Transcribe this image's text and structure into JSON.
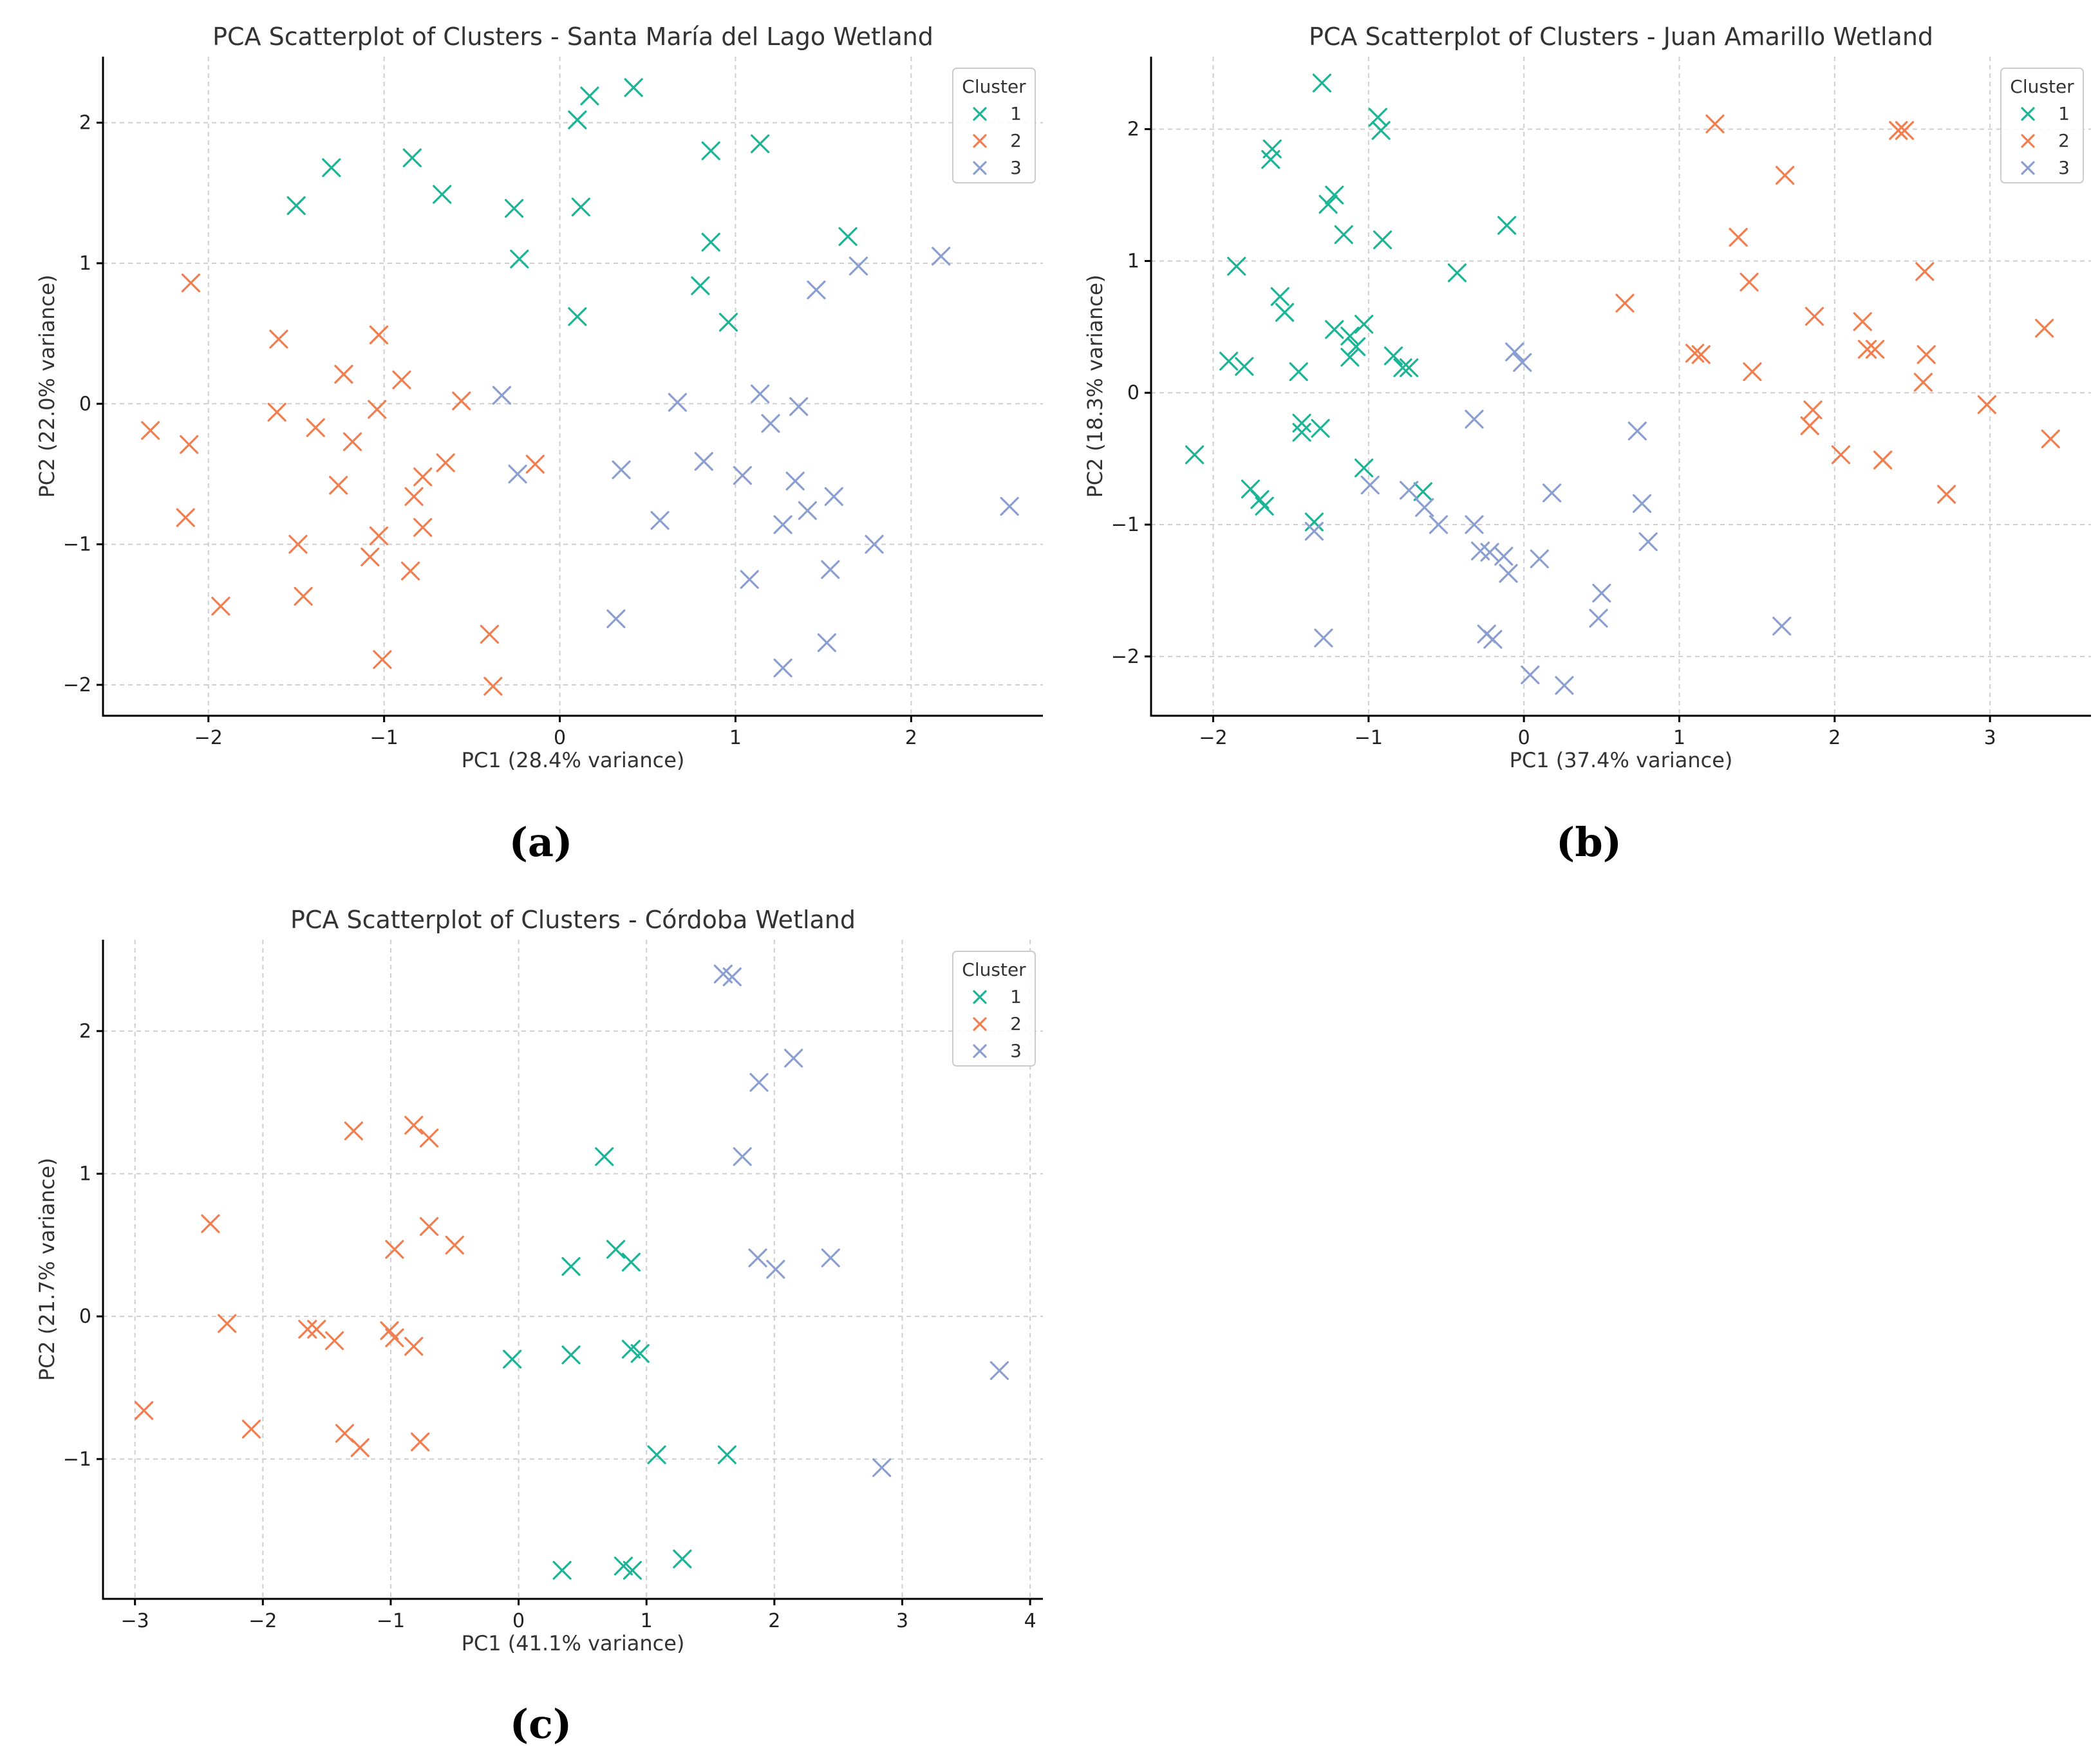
{
  "colors": {
    "cluster_1": "#1bb596",
    "cluster_2": "#f27d4e",
    "cluster_3": "#8a9fd0"
  },
  "chart_data": [
    {
      "type": "scatter",
      "panel_label": "(a)",
      "title": "PCA Scatterplot of Clusters - Santa María del Lago Wetland",
      "xlabel": "PC1 (28.4% variance)",
      "ylabel": "PC2 (22.0% variance)",
      "xlim": [
        -2.6,
        2.75
      ],
      "ylim": [
        -2.22,
        2.47
      ],
      "xticks": [
        -2,
        -1,
        0,
        1,
        2
      ],
      "yticks": [
        -2,
        -1,
        0,
        1,
        2
      ],
      "grid": true,
      "legend": {
        "title": "Cluster",
        "placement": "top-right"
      },
      "series": [
        {
          "name": "1",
          "points": [
            [
              0.42,
              2.25
            ],
            [
              0.17,
              2.19
            ],
            [
              0.1,
              2.02
            ],
            [
              -1.3,
              1.68
            ],
            [
              -0.84,
              1.75
            ],
            [
              -1.5,
              1.41
            ],
            [
              -0.67,
              1.49
            ],
            [
              -0.26,
              1.39
            ],
            [
              0.12,
              1.4
            ],
            [
              0.86,
              1.8
            ],
            [
              1.14,
              1.85
            ],
            [
              0.86,
              1.15
            ],
            [
              -0.23,
              1.03
            ],
            [
              1.64,
              1.19
            ],
            [
              0.8,
              0.84
            ],
            [
              0.1,
              0.62
            ],
            [
              0.96,
              0.58
            ]
          ]
        },
        {
          "name": "2",
          "points": [
            [
              -2.1,
              0.86
            ],
            [
              -1.6,
              0.46
            ],
            [
              -1.03,
              0.49
            ],
            [
              -1.23,
              0.21
            ],
            [
              -0.9,
              0.17
            ],
            [
              -1.61,
              -0.06
            ],
            [
              -1.04,
              -0.04
            ],
            [
              -0.56,
              0.02
            ],
            [
              -2.33,
              -0.19
            ],
            [
              -2.11,
              -0.29
            ],
            [
              -1.39,
              -0.17
            ],
            [
              -1.18,
              -0.27
            ],
            [
              -0.65,
              -0.42
            ],
            [
              -0.78,
              -0.52
            ],
            [
              -1.26,
              -0.58
            ],
            [
              -0.14,
              -0.43
            ],
            [
              -0.83,
              -0.66
            ],
            [
              -2.13,
              -0.81
            ],
            [
              -0.78,
              -0.88
            ],
            [
              -1.49,
              -1.0
            ],
            [
              -1.03,
              -0.94
            ],
            [
              -1.08,
              -1.09
            ],
            [
              -0.85,
              -1.19
            ],
            [
              -1.46,
              -1.37
            ],
            [
              -1.93,
              -1.44
            ],
            [
              -0.4,
              -1.64
            ],
            [
              -1.01,
              -1.82
            ],
            [
              -0.38,
              -2.01
            ]
          ]
        },
        {
          "name": "3",
          "points": [
            [
              2.17,
              1.05
            ],
            [
              1.7,
              0.98
            ],
            [
              1.46,
              0.81
            ],
            [
              -0.33,
              0.06
            ],
            [
              0.67,
              0.01
            ],
            [
              1.14,
              0.07
            ],
            [
              1.36,
              -0.02
            ],
            [
              1.2,
              -0.14
            ],
            [
              -0.24,
              -0.5
            ],
            [
              0.35,
              -0.47
            ],
            [
              0.82,
              -0.41
            ],
            [
              1.04,
              -0.51
            ],
            [
              1.34,
              -0.55
            ],
            [
              1.56,
              -0.66
            ],
            [
              0.57,
              -0.83
            ],
            [
              1.41,
              -0.76
            ],
            [
              1.27,
              -0.86
            ],
            [
              2.56,
              -0.73
            ],
            [
              1.79,
              -1.0
            ],
            [
              1.54,
              -1.18
            ],
            [
              1.08,
              -1.25
            ],
            [
              0.32,
              -1.53
            ],
            [
              1.52,
              -1.7
            ],
            [
              1.27,
              -1.88
            ]
          ]
        }
      ]
    },
    {
      "type": "scatter",
      "panel_label": "(b)",
      "title": "PCA Scatterplot of Clusters - Juan Amarillo Wetland",
      "xlabel": "PC1 (37.4% variance)",
      "ylabel": "PC2 (18.3% variance)",
      "xlim": [
        -2.4,
        3.65
      ],
      "ylim": [
        -2.45,
        2.55
      ],
      "xticks": [
        -2,
        -1,
        0,
        1,
        2,
        3
      ],
      "yticks": [
        -2,
        -1,
        0,
        1,
        2
      ],
      "grid": true,
      "legend": {
        "title": "Cluster",
        "placement": "top-right"
      },
      "series": [
        {
          "name": "1",
          "points": [
            [
              -1.3,
              2.35
            ],
            [
              -0.94,
              2.09
            ],
            [
              -0.92,
              1.99
            ],
            [
              -1.62,
              1.85
            ],
            [
              -1.63,
              1.77
            ],
            [
              -1.22,
              1.5
            ],
            [
              -1.26,
              1.43
            ],
            [
              -1.16,
              1.2
            ],
            [
              -0.91,
              1.16
            ],
            [
              -0.11,
              1.27
            ],
            [
              -1.85,
              0.96
            ],
            [
              -0.43,
              0.91
            ],
            [
              -1.57,
              0.73
            ],
            [
              -1.54,
              0.61
            ],
            [
              -1.03,
              0.52
            ],
            [
              -1.22,
              0.48
            ],
            [
              -1.12,
              0.43
            ],
            [
              -1.08,
              0.35
            ],
            [
              -1.12,
              0.27
            ],
            [
              -0.84,
              0.28
            ],
            [
              -0.74,
              0.19
            ],
            [
              -0.78,
              0.19
            ],
            [
              -1.9,
              0.24
            ],
            [
              -1.8,
              0.2
            ],
            [
              -1.45,
              0.16
            ],
            [
              -1.43,
              -0.23
            ],
            [
              -1.43,
              -0.3
            ],
            [
              -1.31,
              -0.27
            ],
            [
              -2.12,
              -0.47
            ],
            [
              -1.03,
              -0.57
            ],
            [
              -0.65,
              -0.75
            ],
            [
              -1.76,
              -0.73
            ],
            [
              -1.7,
              -0.81
            ],
            [
              -1.67,
              -0.86
            ],
            [
              -1.35,
              -0.98
            ]
          ]
        },
        {
          "name": "2",
          "points": [
            [
              1.23,
              2.04
            ],
            [
              2.41,
              1.99
            ],
            [
              2.45,
              1.99
            ],
            [
              1.68,
              1.65
            ],
            [
              1.38,
              1.18
            ],
            [
              2.58,
              0.92
            ],
            [
              1.45,
              0.84
            ],
            [
              0.65,
              0.68
            ],
            [
              2.18,
              0.54
            ],
            [
              1.87,
              0.58
            ],
            [
              3.35,
              0.49
            ],
            [
              2.21,
              0.33
            ],
            [
              2.26,
              0.33
            ],
            [
              1.1,
              0.3
            ],
            [
              1.14,
              0.29
            ],
            [
              2.59,
              0.29
            ],
            [
              1.47,
              0.16
            ],
            [
              2.57,
              0.08
            ],
            [
              1.86,
              -0.13
            ],
            [
              1.84,
              -0.25
            ],
            [
              2.98,
              -0.09
            ],
            [
              3.39,
              -0.35
            ],
            [
              2.04,
              -0.47
            ],
            [
              2.31,
              -0.51
            ],
            [
              2.72,
              -0.77
            ]
          ]
        },
        {
          "name": "3",
          "points": [
            [
              -0.06,
              0.31
            ],
            [
              -0.01,
              0.23
            ],
            [
              -0.32,
              -0.2
            ],
            [
              0.73,
              -0.29
            ],
            [
              -0.99,
              -0.7
            ],
            [
              -0.74,
              -0.74
            ],
            [
              -0.64,
              -0.87
            ],
            [
              0.18,
              -0.76
            ],
            [
              0.76,
              -0.84
            ],
            [
              -0.55,
              -1.0
            ],
            [
              -0.32,
              -1.0
            ],
            [
              -1.35,
              -1.05
            ],
            [
              0.8,
              -1.13
            ],
            [
              -0.28,
              -1.2
            ],
            [
              -0.22,
              -1.21
            ],
            [
              -0.13,
              -1.24
            ],
            [
              0.1,
              -1.26
            ],
            [
              -0.1,
              -1.37
            ],
            [
              0.5,
              -1.52
            ],
            [
              0.48,
              -1.71
            ],
            [
              -0.24,
              -1.83
            ],
            [
              -0.2,
              -1.87
            ],
            [
              1.66,
              -1.77
            ],
            [
              -1.29,
              -1.86
            ],
            [
              0.04,
              -2.14
            ],
            [
              0.26,
              -2.22
            ]
          ]
        }
      ]
    },
    {
      "type": "scatter",
      "panel_label": "(c)",
      "title": "PCA Scatterplot of Clusters - Córdoba Wetland",
      "xlabel": "PC1 (41.1% variance)",
      "ylabel": "PC2 (21.7% variance)",
      "xlim": [
        -3.25,
        4.1
      ],
      "ylim": [
        -1.98,
        2.64
      ],
      "xticks": [
        -3,
        -2,
        -1,
        0,
        1,
        2,
        3,
        4
      ],
      "yticks": [
        -1,
        0,
        1,
        2
      ],
      "grid": true,
      "legend": {
        "title": "Cluster",
        "placement": "top-right"
      },
      "series": [
        {
          "name": "1",
          "points": [
            [
              0.67,
              1.12
            ],
            [
              0.76,
              0.47
            ],
            [
              0.88,
              0.38
            ],
            [
              0.41,
              0.35
            ],
            [
              -0.05,
              -0.3
            ],
            [
              0.41,
              -0.27
            ],
            [
              0.88,
              -0.23
            ],
            [
              0.95,
              -0.26
            ],
            [
              1.08,
              -0.97
            ],
            [
              1.63,
              -0.97
            ],
            [
              0.34,
              -1.78
            ],
            [
              0.82,
              -1.75
            ],
            [
              0.89,
              -1.78
            ],
            [
              1.28,
              -1.7
            ]
          ]
        },
        {
          "name": "2",
          "points": [
            [
              -1.29,
              1.3
            ],
            [
              -0.82,
              1.34
            ],
            [
              -0.7,
              1.25
            ],
            [
              -0.7,
              0.63
            ],
            [
              -0.5,
              0.5
            ],
            [
              -0.97,
              0.47
            ],
            [
              -2.41,
              0.65
            ],
            [
              -2.28,
              -0.05
            ],
            [
              -1.65,
              -0.09
            ],
            [
              -1.58,
              -0.09
            ],
            [
              -1.44,
              -0.17
            ],
            [
              -1.01,
              -0.1
            ],
            [
              -0.97,
              -0.15
            ],
            [
              -0.82,
              -0.21
            ],
            [
              -2.93,
              -0.66
            ],
            [
              -2.09,
              -0.79
            ],
            [
              -1.36,
              -0.82
            ],
            [
              -1.24,
              -0.92
            ],
            [
              -0.77,
              -0.88
            ]
          ]
        },
        {
          "name": "3",
          "points": [
            [
              1.6,
              2.4
            ],
            [
              1.67,
              2.38
            ],
            [
              2.15,
              1.81
            ],
            [
              1.88,
              1.64
            ],
            [
              1.75,
              1.12
            ],
            [
              1.87,
              0.41
            ],
            [
              2.01,
              0.33
            ],
            [
              2.44,
              0.41
            ],
            [
              3.76,
              -0.38
            ],
            [
              2.84,
              -1.06
            ]
          ]
        }
      ]
    }
  ]
}
